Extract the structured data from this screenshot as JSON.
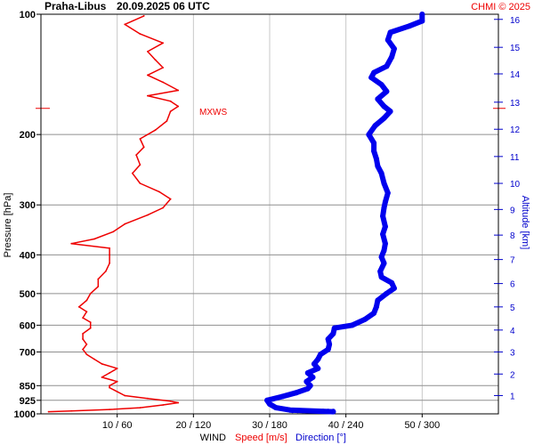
{
  "header": {
    "station": "Praha-Libus",
    "datetime": "20.09.2025 06 UTC",
    "copyright": "CHMI © 2025"
  },
  "chart_data": {
    "type": "line",
    "y_axis": {
      "label": "Pressure [hPa]",
      "ticks": [
        "100",
        "200",
        "300",
        "400",
        "500",
        "600",
        "700",
        "850",
        "925",
        "1000"
      ],
      "tick_values": [
        100,
        200,
        300,
        400,
        500,
        600,
        700,
        850,
        925,
        1000
      ],
      "scale": "log",
      "range": [
        100,
        1000
      ]
    },
    "x_axis": {
      "ticks": [
        "10 / 60",
        "20 / 120",
        "30 / 180",
        "40 / 240",
        "50 / 300"
      ],
      "speed_tick_values": [
        10,
        20,
        30,
        40,
        50
      ],
      "direction_tick_values": [
        60,
        120,
        180,
        240,
        300
      ],
      "speed_range": [
        0,
        60
      ],
      "direction_range": [
        0,
        360
      ]
    },
    "altitude_axis": {
      "label": "Altitude [km]",
      "ticks": [
        "1",
        "2",
        "3",
        "4",
        "5",
        "6",
        "7",
        "8",
        "9",
        "10",
        "11",
        "12",
        "13",
        "14",
        "15",
        "16"
      ],
      "tick_pressures": [
        900,
        795,
        700,
        617,
        540,
        472,
        411,
        357,
        308,
        265,
        227,
        194,
        166,
        141,
        121,
        103
      ]
    },
    "grid": true,
    "legend": {
      "wind": "WIND",
      "speed": "Speed [m/s]",
      "direction": "Direction [°]"
    },
    "annotation": {
      "text": "MXWS",
      "pressure": 172,
      "speed": 18
    },
    "colors": {
      "speed": "#ee0000",
      "direction": "#0000ee",
      "grid": "#c8c8c8"
    },
    "series": [
      {
        "name": "Speed [m/s]",
        "points": [
          [
            988,
            1
          ],
          [
            983,
            4
          ],
          [
            975,
            9
          ],
          [
            965,
            13
          ],
          [
            950,
            16
          ],
          [
            938,
            18
          ],
          [
            930,
            17
          ],
          [
            915,
            14
          ],
          [
            900,
            11
          ],
          [
            880,
            10
          ],
          [
            860,
            9
          ],
          [
            850,
            9
          ],
          [
            830,
            10
          ],
          [
            810,
            8
          ],
          [
            790,
            9
          ],
          [
            770,
            10
          ],
          [
            750,
            8
          ],
          [
            730,
            7
          ],
          [
            710,
            6
          ],
          [
            690,
            5.5
          ],
          [
            670,
            6
          ],
          [
            650,
            5.5
          ],
          [
            630,
            5.5
          ],
          [
            610,
            6.5
          ],
          [
            590,
            6.5
          ],
          [
            575,
            5.5
          ],
          [
            555,
            6
          ],
          [
            540,
            5
          ],
          [
            520,
            6
          ],
          [
            500,
            6.5
          ],
          [
            480,
            7.5
          ],
          [
            460,
            7.5
          ],
          [
            440,
            8.5
          ],
          [
            420,
            9
          ],
          [
            400,
            9
          ],
          [
            385,
            9
          ],
          [
            375,
            4
          ],
          [
            365,
            7
          ],
          [
            350,
            9.5
          ],
          [
            335,
            11
          ],
          [
            318,
            14
          ],
          [
            305,
            16
          ],
          [
            290,
            17
          ],
          [
            278,
            15.5
          ],
          [
            265,
            13
          ],
          [
            250,
            12
          ],
          [
            238,
            13
          ],
          [
            225,
            12.5
          ],
          [
            215,
            13.5
          ],
          [
            205,
            13
          ],
          [
            195,
            15
          ],
          [
            185,
            16.5
          ],
          [
            175,
            17
          ],
          [
            170,
            18
          ],
          [
            165,
            17
          ],
          [
            160,
            14
          ],
          [
            155,
            18
          ],
          [
            148,
            16
          ],
          [
            142,
            14
          ],
          [
            136,
            16
          ],
          [
            130,
            15
          ],
          [
            124,
            14
          ],
          [
            118,
            16
          ],
          [
            112,
            13
          ],
          [
            106,
            11
          ],
          [
            101,
            13.5
          ]
        ]
      },
      {
        "name": "Direction [°]",
        "points": [
          [
            988,
            230
          ],
          [
            978,
            196
          ],
          [
            965,
            185
          ],
          [
            945,
            180
          ],
          [
            925,
            178
          ],
          [
            905,
            190
          ],
          [
            885,
            201
          ],
          [
            865,
            210
          ],
          [
            850,
            212
          ],
          [
            830,
            209
          ],
          [
            810,
            214
          ],
          [
            790,
            210
          ],
          [
            770,
            218
          ],
          [
            750,
            215
          ],
          [
            730,
            218
          ],
          [
            710,
            220
          ],
          [
            690,
            226
          ],
          [
            670,
            227
          ],
          [
            650,
            226
          ],
          [
            630,
            230
          ],
          [
            610,
            231
          ],
          [
            600,
            245
          ],
          [
            580,
            255
          ],
          [
            560,
            262
          ],
          [
            540,
            264
          ],
          [
            520,
            265
          ],
          [
            500,
            272
          ],
          [
            485,
            278
          ],
          [
            470,
            276
          ],
          [
            455,
            268
          ],
          [
            440,
            267
          ],
          [
            420,
            270
          ],
          [
            405,
            268
          ],
          [
            390,
            270
          ],
          [
            375,
            271
          ],
          [
            355,
            269
          ],
          [
            340,
            271
          ],
          [
            320,
            269
          ],
          [
            305,
            270
          ],
          [
            295,
            271
          ],
          [
            280,
            273
          ],
          [
            265,
            270
          ],
          [
            250,
            268
          ],
          [
            240,
            265
          ],
          [
            230,
            264
          ],
          [
            220,
            262
          ],
          [
            210,
            262
          ],
          [
            200,
            258
          ],
          [
            190,
            263
          ],
          [
            182,
            270
          ],
          [
            175,
            275
          ],
          [
            170,
            270
          ],
          [
            163,
            265
          ],
          [
            156,
            272
          ],
          [
            150,
            268
          ],
          [
            144,
            260
          ],
          [
            140,
            262
          ],
          [
            135,
            272
          ],
          [
            128,
            276
          ],
          [
            122,
            278
          ],
          [
            116,
            273
          ],
          [
            111,
            275
          ],
          [
            107,
            290
          ],
          [
            104,
            300
          ],
          [
            100,
            300
          ]
        ]
      }
    ]
  }
}
